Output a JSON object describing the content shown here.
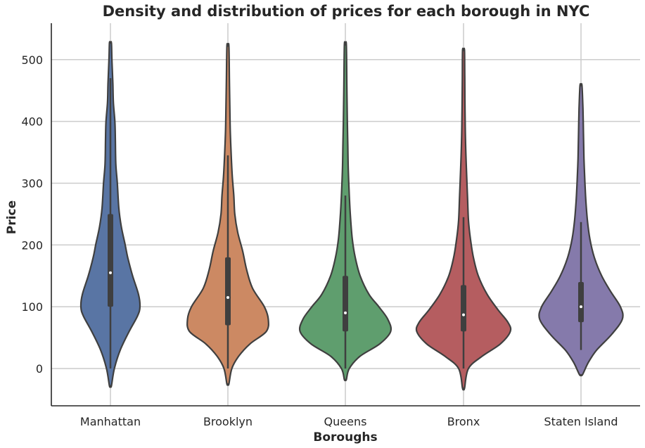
{
  "chart_data": {
    "type": "violin",
    "title": "Density and distribution of prices for each borough in NYC",
    "xlabel": "Boroughs",
    "ylabel": "Price",
    "ylim": [
      -60,
      555
    ],
    "yticks": [
      0,
      100,
      200,
      300,
      400,
      500
    ],
    "grid": true,
    "categories": [
      "Manhattan",
      "Brooklyn",
      "Queens",
      "Bronx",
      "Staten Island"
    ],
    "series": [
      {
        "category": "Manhattan",
        "color": "#5975a4",
        "min": -28,
        "max": 527,
        "q1": 100,
        "median": 155,
        "q3": 250,
        "whisker_low": 0,
        "whisker_high": 470,
        "density": [
          [
            -28,
            0.02
          ],
          [
            0,
            0.08
          ],
          [
            30,
            0.2
          ],
          [
            60,
            0.38
          ],
          [
            85,
            0.55
          ],
          [
            100,
            0.6
          ],
          [
            120,
            0.57
          ],
          [
            150,
            0.45
          ],
          [
            180,
            0.35
          ],
          [
            200,
            0.3
          ],
          [
            230,
            0.22
          ],
          [
            260,
            0.17
          ],
          [
            300,
            0.14
          ],
          [
            330,
            0.11
          ],
          [
            370,
            0.1
          ],
          [
            400,
            0.09
          ],
          [
            430,
            0.06
          ],
          [
            460,
            0.05
          ],
          [
            500,
            0.03
          ],
          [
            527,
            0.02
          ]
        ]
      },
      {
        "category": "Brooklyn",
        "color": "#cc8963",
        "min": -25,
        "max": 522,
        "q1": 70,
        "median": 115,
        "q3": 180,
        "whisker_low": 0,
        "whisker_high": 345,
        "density": [
          [
            -25,
            0.02
          ],
          [
            0,
            0.08
          ],
          [
            20,
            0.22
          ],
          [
            40,
            0.45
          ],
          [
            60,
            0.78
          ],
          [
            80,
            0.82
          ],
          [
            100,
            0.74
          ],
          [
            130,
            0.5
          ],
          [
            160,
            0.38
          ],
          [
            190,
            0.3
          ],
          [
            220,
            0.2
          ],
          [
            250,
            0.14
          ],
          [
            280,
            0.12
          ],
          [
            310,
            0.09
          ],
          [
            340,
            0.07
          ],
          [
            380,
            0.05
          ],
          [
            420,
            0.04
          ],
          [
            470,
            0.03
          ],
          [
            522,
            0.02
          ]
        ]
      },
      {
        "category": "Queens",
        "color": "#5f9e6e",
        "min": -18,
        "max": 524,
        "q1": 60,
        "median": 90,
        "q3": 150,
        "whisker_low": 0,
        "whisker_high": 280,
        "density": [
          [
            -18,
            0.02
          ],
          [
            0,
            0.08
          ],
          [
            20,
            0.3
          ],
          [
            40,
            0.7
          ],
          [
            60,
            0.92
          ],
          [
            80,
            0.86
          ],
          [
            100,
            0.68
          ],
          [
            120,
            0.48
          ],
          [
            150,
            0.3
          ],
          [
            180,
            0.2
          ],
          [
            210,
            0.14
          ],
          [
            250,
            0.1
          ],
          [
            280,
            0.08
          ],
          [
            320,
            0.06
          ],
          [
            360,
            0.05
          ],
          [
            400,
            0.04
          ],
          [
            460,
            0.03
          ],
          [
            524,
            0.02
          ]
        ]
      },
      {
        "category": "Bronx",
        "color": "#b55d60",
        "min": -32,
        "max": 515,
        "q1": 60,
        "median": 87,
        "q3": 135,
        "whisker_low": 0,
        "whisker_high": 245,
        "density": [
          [
            -32,
            0.02
          ],
          [
            0,
            0.1
          ],
          [
            20,
            0.38
          ],
          [
            40,
            0.75
          ],
          [
            60,
            0.95
          ],
          [
            75,
            0.9
          ],
          [
            95,
            0.7
          ],
          [
            120,
            0.48
          ],
          [
            150,
            0.3
          ],
          [
            180,
            0.2
          ],
          [
            210,
            0.14
          ],
          [
            240,
            0.1
          ],
          [
            280,
            0.08
          ],
          [
            320,
            0.06
          ],
          [
            370,
            0.04
          ],
          [
            420,
            0.03
          ],
          [
            470,
            0.025
          ],
          [
            515,
            0.02
          ]
        ]
      },
      {
        "category": "Staten Island",
        "color": "#857aab",
        "min": -10,
        "max": 458,
        "q1": 75,
        "median": 100,
        "q3": 140,
        "whisker_low": 30,
        "whisker_high": 237,
        "density": [
          [
            -10,
            0.03
          ],
          [
            10,
            0.15
          ],
          [
            30,
            0.32
          ],
          [
            55,
            0.62
          ],
          [
            80,
            0.84
          ],
          [
            100,
            0.8
          ],
          [
            125,
            0.6
          ],
          [
            150,
            0.42
          ],
          [
            180,
            0.27
          ],
          [
            210,
            0.18
          ],
          [
            240,
            0.13
          ],
          [
            270,
            0.1
          ],
          [
            300,
            0.08
          ],
          [
            340,
            0.06
          ],
          [
            380,
            0.05
          ],
          [
            420,
            0.04
          ],
          [
            458,
            0.02
          ]
        ]
      }
    ]
  }
}
